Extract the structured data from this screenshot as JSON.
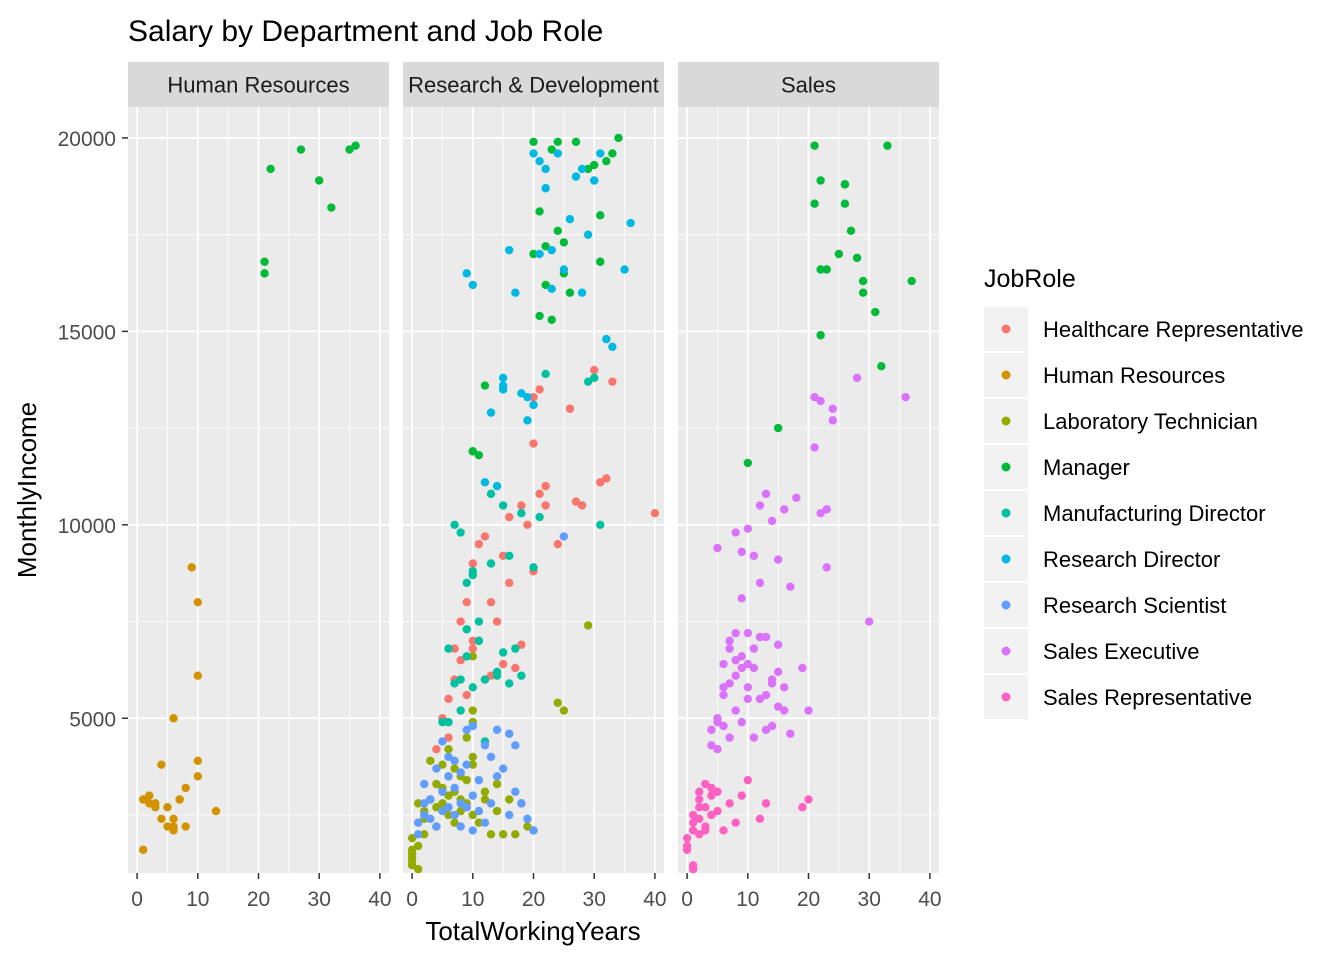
{
  "chart_data": {
    "type": "scatter",
    "title": "Salary by Department and Job Role",
    "xlabel": "TotalWorkingYears",
    "ylabel": "MonthlyIncome",
    "xlim": [
      -1.5,
      41.5
    ],
    "ylim": [
      1000,
      20800
    ],
    "x_ticks": [
      0,
      10,
      20,
      30,
      40
    ],
    "y_ticks": [
      5000,
      10000,
      15000,
      20000
    ],
    "grid": true,
    "facets": [
      "Human Resources",
      "Research & Development",
      "Sales"
    ],
    "legend": {
      "title": "JobRole",
      "position": "right",
      "entries": [
        {
          "label": "Healthcare Representative",
          "color": "#F8766D"
        },
        {
          "label": "Human Resources",
          "color": "#D39200"
        },
        {
          "label": "Laboratory Technician",
          "color": "#93AA00"
        },
        {
          "label": "Manager",
          "color": "#00BA38"
        },
        {
          "label": "Manufacturing Director",
          "color": "#00C19F"
        },
        {
          "label": "Research Director",
          "color": "#00B9E3"
        },
        {
          "label": "Research Scientist",
          "color": "#619CFF"
        },
        {
          "label": "Sales Executive",
          "color": "#DB72FB"
        },
        {
          "label": "Sales Representative",
          "color": "#FF61C3"
        }
      ]
    },
    "series": [
      {
        "name": "Healthcare Representative",
        "facet": "Research & Development",
        "x": [
          5,
          6,
          7,
          8,
          8,
          9,
          10,
          10,
          11,
          11,
          12,
          13,
          14,
          15,
          16,
          17,
          18,
          19,
          20,
          20,
          21,
          21,
          22,
          22,
          24,
          26,
          27,
          28,
          30,
          31,
          32,
          33,
          40,
          4,
          6,
          7,
          9,
          10,
          12,
          13,
          15,
          16,
          18,
          20
        ],
        "y": [
          5000,
          5500,
          6000,
          6500,
          7500,
          8000,
          6800,
          9000,
          7000,
          9500,
          6000,
          8000,
          7500,
          9200,
          10200,
          6300,
          10500,
          10000,
          8800,
          12100,
          13500,
          10800,
          10500,
          11000,
          9500,
          13000,
          10600,
          10500,
          14000,
          11100,
          11200,
          13700,
          10300,
          4200,
          4500,
          6800,
          5600,
          7000,
          9700,
          6100,
          6400,
          8500,
          6900,
          13300
        ]
      },
      {
        "name": "Human Resources",
        "facet": "Human Resources",
        "x": [
          1,
          1,
          2,
          2,
          3,
          3,
          4,
          4,
          5,
          5,
          6,
          6,
          6,
          6,
          7,
          7,
          8,
          8,
          9,
          10,
          10,
          10,
          10,
          13
        ],
        "y": [
          2900,
          1600,
          3000,
          2800,
          2700,
          2800,
          3800,
          2400,
          2700,
          2200,
          5000,
          2100,
          2400,
          2200,
          2900,
          2900,
          2200,
          3200,
          8900,
          3900,
          6100,
          8000,
          3500,
          2600
        ]
      },
      {
        "name": "Laboratory Technician",
        "facet": "Research & Development",
        "x": [
          0,
          0,
          0,
          0,
          0,
          0,
          1,
          1,
          1,
          2,
          2,
          2,
          3,
          3,
          4,
          4,
          4,
          5,
          5,
          5,
          6,
          6,
          6,
          6,
          7,
          7,
          7,
          8,
          8,
          8,
          9,
          9,
          9,
          10,
          10,
          10,
          10,
          10,
          10,
          11,
          12,
          12,
          13,
          14,
          14,
          15,
          16,
          17,
          18,
          19,
          20,
          24,
          25,
          29
        ],
        "y": [
          1500,
          1200,
          1600,
          1900,
          1300,
          1400,
          1100,
          2800,
          1700,
          2000,
          2400,
          2600,
          2900,
          3900,
          2200,
          2700,
          3300,
          2800,
          3200,
          3800,
          2500,
          3000,
          3500,
          4200,
          3100,
          2300,
          3700,
          2600,
          2900,
          3500,
          2800,
          4500,
          3400,
          6600,
          5200,
          3800,
          4900,
          2500,
          4000,
          2300,
          3100,
          2900,
          2000,
          2600,
          3300,
          2000,
          2900,
          2000,
          2800,
          2200,
          2100,
          5400,
          5200,
          7400
        ]
      },
      {
        "name": "Manager",
        "facet": "Human Resources",
        "x": [
          21,
          21,
          22,
          27,
          30,
          32,
          35,
          36
        ],
        "y": [
          16800,
          16500,
          19200,
          19700,
          18900,
          18200,
          19700,
          19800
        ]
      },
      {
        "name": "Manager",
        "facet": "Research & Development",
        "x": [
          10,
          10,
          11,
          12,
          20,
          21,
          21,
          22,
          23,
          23,
          24,
          24,
          25,
          26,
          27,
          29,
          30,
          31,
          32,
          33,
          34,
          20,
          22,
          25,
          31
        ],
        "y": [
          11900,
          11900,
          11800,
          13600,
          19900,
          18100,
          15400,
          17200,
          19700,
          15300,
          19900,
          17600,
          16500,
          16000,
          19900,
          19200,
          19300,
          18000,
          19400,
          19600,
          20000,
          17000,
          16200,
          17300,
          16800
        ]
      },
      {
        "name": "Manager",
        "facet": "Sales",
        "x": [
          10,
          15,
          21,
          21,
          22,
          22,
          23,
          25,
          26,
          26,
          26,
          27,
          28,
          29,
          29,
          31,
          32,
          33,
          37,
          22
        ],
        "y": [
          11600,
          12500,
          19800,
          18300,
          18900,
          14900,
          16600,
          17000,
          18800,
          18800,
          18300,
          17600,
          16900,
          16300,
          16000,
          15500,
          14100,
          19800,
          16300,
          16600
        ]
      },
      {
        "name": "Manufacturing Director",
        "facet": "Research & Development",
        "x": [
          5,
          6,
          7,
          7,
          8,
          8,
          9,
          9,
          9,
          10,
          10,
          11,
          11,
          12,
          13,
          13,
          14,
          15,
          15,
          16,
          17,
          18,
          20,
          21,
          22,
          29,
          30,
          31,
          6,
          8,
          10,
          12,
          14,
          16,
          18
        ],
        "y": [
          4900,
          6800,
          5900,
          10000,
          6000,
          9800,
          6600,
          7300,
          8500,
          8700,
          8800,
          7500,
          7000,
          6000,
          10800,
          9000,
          6100,
          10500,
          6700,
          9200,
          6800,
          10300,
          8900,
          10200,
          13900,
          13700,
          13800,
          10000,
          4900,
          5200,
          5800,
          4400,
          6200,
          5900,
          6100
        ]
      },
      {
        "name": "Research Director",
        "facet": "Research & Development",
        "x": [
          9,
          10,
          12,
          13,
          14,
          15,
          15,
          15,
          16,
          17,
          18,
          19,
          20,
          20,
          21,
          22,
          22,
          23,
          24,
          25,
          26,
          27,
          28,
          28,
          29,
          30,
          31,
          32,
          33,
          35,
          36,
          21,
          23,
          19
        ],
        "y": [
          16500,
          16200,
          11100,
          12900,
          11000,
          13500,
          13800,
          13600,
          17100,
          16000,
          13400,
          13300,
          19600,
          13100,
          19400,
          18700,
          19200,
          17100,
          19600,
          16600,
          17900,
          19000,
          16000,
          19200,
          17500,
          18900,
          19600,
          14800,
          14600,
          16600,
          17800,
          17000,
          16100,
          12700
        ]
      },
      {
        "name": "Research Scientist",
        "facet": "Research & Development",
        "x": [
          1,
          1,
          2,
          2,
          2,
          3,
          3,
          4,
          4,
          5,
          5,
          5,
          6,
          6,
          6,
          7,
          7,
          7,
          8,
          8,
          8,
          9,
          9,
          9,
          10,
          10,
          10,
          11,
          11,
          12,
          12,
          13,
          13,
          14,
          14,
          15,
          16,
          16,
          17,
          17,
          18,
          19,
          20,
          25
        ],
        "y": [
          2000,
          2300,
          2500,
          2800,
          3300,
          2400,
          2900,
          3700,
          2200,
          2600,
          3100,
          4400,
          2700,
          3500,
          4000,
          2500,
          3200,
          3900,
          2200,
          2800,
          3600,
          2700,
          3800,
          4700,
          2100,
          3000,
          4800,
          2600,
          3400,
          2300,
          4300,
          2800,
          4000,
          3500,
          4700,
          3700,
          2500,
          4600,
          3100,
          4300,
          2800,
          2400,
          2100,
          9700
        ]
      },
      {
        "name": "Sales Executive",
        "facet": "Sales",
        "x": [
          4,
          4,
          5,
          5,
          5,
          6,
          6,
          6,
          7,
          7,
          7,
          8,
          8,
          8,
          8,
          9,
          9,
          9,
          9,
          10,
          10,
          10,
          10,
          11,
          11,
          11,
          12,
          12,
          12,
          13,
          13,
          13,
          14,
          14,
          14,
          15,
          15,
          15,
          16,
          16,
          17,
          17,
          18,
          19,
          20,
          21,
          21,
          22,
          22,
          23,
          23,
          24,
          24,
          28,
          30,
          36,
          5,
          6,
          7,
          8,
          9,
          10,
          11,
          12,
          13,
          14,
          15,
          16
        ],
        "y": [
          4700,
          4300,
          9400,
          4900,
          5000,
          6400,
          5600,
          4800,
          6800,
          5900,
          4500,
          9800,
          5200,
          6500,
          7200,
          9300,
          6300,
          4900,
          8100,
          9900,
          5800,
          6400,
          7200,
          9200,
          6300,
          4500,
          5500,
          8500,
          10500,
          10800,
          7100,
          4700,
          10100,
          6000,
          4800,
          9100,
          6900,
          5300,
          10400,
          5800,
          8400,
          4600,
          10700,
          6300,
          5200,
          12000,
          13300,
          13200,
          10300,
          10400,
          8900,
          13000,
          12700,
          13800,
          7500,
          13300,
          4200,
          5800,
          7000,
          6100,
          6600,
          5500,
          6800,
          7100,
          5600,
          5900,
          6200,
          5200
        ]
      },
      {
        "name": "Sales Representative",
        "facet": "Sales",
        "x": [
          0,
          0,
          0,
          1,
          1,
          1,
          1,
          2,
          2,
          2,
          2,
          3,
          3,
          3,
          4,
          4,
          4,
          5,
          5,
          6,
          7,
          8,
          9,
          10,
          12,
          13,
          19,
          20,
          1,
          2,
          3
        ],
        "y": [
          1900,
          1600,
          1700,
          2300,
          2500,
          2100,
          1200,
          2400,
          2900,
          2000,
          3100,
          3300,
          2700,
          2200,
          2500,
          3200,
          3000,
          3100,
          2600,
          2100,
          2800,
          2300,
          3000,
          3400,
          2400,
          2800,
          2700,
          2900,
          1100,
          2700,
          2100
        ]
      }
    ]
  }
}
